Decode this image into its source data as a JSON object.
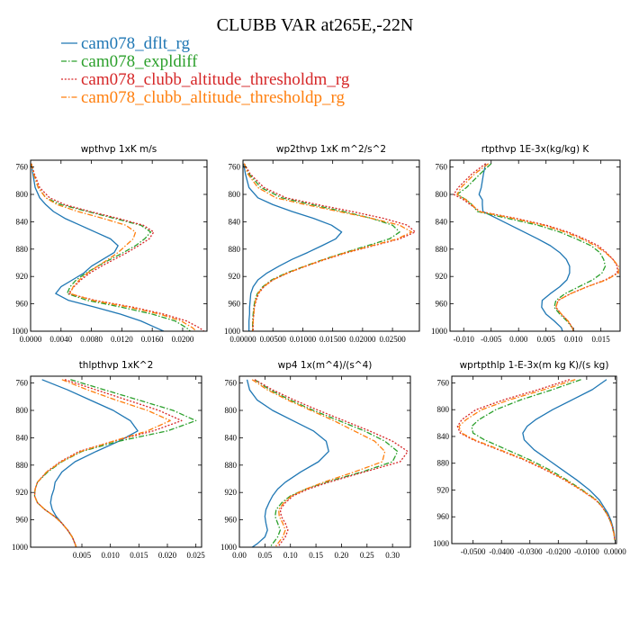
{
  "figure": {
    "title": "CLUBB VAR at265E,-22N",
    "legend": [
      {
        "label": "cam078_dflt_rg",
        "color": "#1f77b4",
        "dash": "solid"
      },
      {
        "label": "cam078_expldiff",
        "color": "#2ca02c",
        "dash": "dashdot"
      },
      {
        "label": "cam078_clubb_altitude_thresholdm_rg",
        "color": "#d62728",
        "dash": "dot"
      },
      {
        "label": "cam078_clubb_altitude_thresholdp_rg",
        "color": "#ff7f0e",
        "dash": "dashdot"
      }
    ]
  },
  "chart_data": [
    {
      "type": "line",
      "title": "wpthvp  1xK m/s",
      "xlim": [
        0.0,
        0.0232
      ],
      "ylim": [
        750,
        1000
      ],
      "y_inverted": true,
      "xticks": [
        0.0,
        0.004,
        0.008,
        0.012,
        0.016,
        0.02
      ],
      "xtick_labels": [
        "0.0000",
        "0.0040",
        "0.0080",
        "0.0120",
        "0.0160",
        "0.0200"
      ],
      "yticks": [
        760,
        800,
        840,
        880,
        920,
        960,
        1000
      ],
      "y": [
        755,
        770,
        790,
        805,
        815,
        825,
        835,
        845,
        855,
        865,
        875,
        885,
        895,
        905,
        915,
        925,
        935,
        945,
        955,
        965,
        975,
        985,
        995,
        1000
      ],
      "series": [
        {
          "name": "cam078_dflt_rg",
          "values": [
            0.0001,
            0.0003,
            0.0006,
            0.0012,
            0.002,
            0.003,
            0.0045,
            0.0065,
            0.0085,
            0.0105,
            0.0115,
            0.011,
            0.0095,
            0.008,
            0.007,
            0.0055,
            0.004,
            0.0033,
            0.005,
            0.0085,
            0.0118,
            0.0145,
            0.0165,
            0.0175
          ]
        },
        {
          "name": "cam078_expldiff",
          "values": [
            0.0001,
            0.0004,
            0.001,
            0.002,
            0.004,
            0.0075,
            0.011,
            0.0145,
            0.0158,
            0.015,
            0.0138,
            0.0122,
            0.0105,
            0.0088,
            0.0073,
            0.006,
            0.0052,
            0.0048,
            0.0075,
            0.012,
            0.016,
            0.019,
            0.0205,
            0.021
          ]
        },
        {
          "name": "cam078_clubb_altitude_thresholdm_rg",
          "values": [
            0.0001,
            0.0005,
            0.0012,
            0.0025,
            0.0045,
            0.0078,
            0.0115,
            0.0148,
            0.0162,
            0.0156,
            0.0142,
            0.0127,
            0.011,
            0.0093,
            0.0078,
            0.0066,
            0.0057,
            0.005,
            0.0085,
            0.0135,
            0.0175,
            0.0205,
            0.0222,
            0.0228
          ]
        },
        {
          "name": "cam078_clubb_altitude_thresholdp_rg",
          "values": [
            0.0001,
            0.0004,
            0.001,
            0.002,
            0.0035,
            0.0062,
            0.0095,
            0.0125,
            0.0138,
            0.0135,
            0.0125,
            0.0115,
            0.0102,
            0.0088,
            0.0075,
            0.0064,
            0.0056,
            0.0052,
            0.0082,
            0.013,
            0.017,
            0.0198,
            0.0213,
            0.0218
          ]
        }
      ]
    },
    {
      "type": "line",
      "title": "wp2thvp  1xK m^2/s^2",
      "xlim": [
        0.0,
        0.0295
      ],
      "ylim": [
        750,
        1000
      ],
      "y_inverted": true,
      "xticks": [
        0.0,
        0.005,
        0.01,
        0.015,
        0.02,
        0.025
      ],
      "xtick_labels": [
        "0.00000",
        "0.00500",
        "0.01000",
        "0.01500",
        "0.02000",
        "0.02500"
      ],
      "yticks": [
        760,
        800,
        840,
        880,
        920,
        960,
        1000
      ],
      "y": [
        755,
        770,
        790,
        805,
        815,
        825,
        835,
        845,
        855,
        865,
        875,
        885,
        895,
        905,
        915,
        925,
        935,
        945,
        955,
        965,
        975,
        985,
        995,
        1000
      ],
      "series": [
        {
          "name": "cam078_dflt_rg",
          "values": [
            0.0001,
            0.0004,
            0.001,
            0.0025,
            0.005,
            0.0082,
            0.0118,
            0.0148,
            0.0165,
            0.0155,
            0.0132,
            0.0108,
            0.0082,
            0.006,
            0.004,
            0.0025,
            0.0017,
            0.0013,
            0.0012,
            0.0011,
            0.0011,
            0.001,
            0.001,
            0.001
          ]
        },
        {
          "name": "cam078_expldiff",
          "values": [
            0.0002,
            0.001,
            0.003,
            0.0065,
            0.0115,
            0.0168,
            0.0215,
            0.025,
            0.0262,
            0.0245,
            0.0208,
            0.017,
            0.0135,
            0.0103,
            0.0072,
            0.0048,
            0.0033,
            0.0024,
            0.002,
            0.0018,
            0.0017,
            0.0016,
            0.0016,
            0.0016
          ]
        },
        {
          "name": "cam078_clubb_altitude_thresholdm_rg",
          "values": [
            0.0002,
            0.0012,
            0.0035,
            0.0072,
            0.0125,
            0.0182,
            0.0235,
            0.0275,
            0.0288,
            0.0262,
            0.0218,
            0.0175,
            0.0138,
            0.0105,
            0.0075,
            0.005,
            0.0035,
            0.0026,
            0.0022,
            0.0019,
            0.0018,
            0.0017,
            0.0017,
            0.0017
          ]
        },
        {
          "name": "cam078_clubb_altitude_thresholdp_rg",
          "values": [
            0.0002,
            0.0008,
            0.0025,
            0.0055,
            0.0105,
            0.016,
            0.0215,
            0.0262,
            0.0282,
            0.0258,
            0.0215,
            0.0172,
            0.0136,
            0.0104,
            0.0074,
            0.005,
            0.0034,
            0.0025,
            0.0021,
            0.0019,
            0.0018,
            0.0017,
            0.0016,
            0.0016
          ]
        }
      ]
    },
    {
      "type": "line",
      "title": "rtpthvp  1E-3x(kg/kg) K",
      "xlim": [
        -0.0125,
        0.0185
      ],
      "ylim": [
        750,
        1000
      ],
      "y_inverted": true,
      "xticks": [
        -0.01,
        -0.005,
        0.0,
        0.005,
        0.01,
        0.015
      ],
      "xtick_labels": [
        "-0.010",
        "-0.005",
        "0.000",
        "0.005",
        "0.010",
        "0.015"
      ],
      "yticks": [
        760,
        800,
        840,
        880,
        920,
        960,
        1000
      ],
      "y": [
        755,
        770,
        790,
        800,
        808,
        815,
        825,
        835,
        845,
        855,
        865,
        875,
        885,
        895,
        905,
        915,
        925,
        935,
        945,
        955,
        965,
        975,
        985,
        995,
        1000
      ],
      "series": [
        {
          "name": "cam078_dflt_rg",
          "values": [
            -0.006,
            -0.0064,
            -0.0068,
            -0.0072,
            -0.0066,
            -0.0066,
            -0.0065,
            -0.004,
            -0.0015,
            0.001,
            0.0035,
            0.0058,
            0.0075,
            0.0087,
            0.0093,
            0.0093,
            0.0088,
            0.0075,
            0.0058,
            0.0043,
            0.0042,
            0.005,
            0.0065,
            0.0078,
            0.008
          ]
        },
        {
          "name": "cam078_expldiff",
          "values": [
            -0.005,
            -0.007,
            -0.0095,
            -0.0112,
            -0.0095,
            -0.0085,
            -0.0075,
            -0.002,
            0.0035,
            0.0075,
            0.0105,
            0.0132,
            0.0148,
            0.0155,
            0.0158,
            0.0152,
            0.0135,
            0.011,
            0.0085,
            0.0068,
            0.0065,
            0.0075,
            0.0088,
            0.0098,
            0.01
          ]
        },
        {
          "name": "cam078_clubb_altitude_thresholdm_rg",
          "values": [
            -0.006,
            -0.0085,
            -0.011,
            -0.0118,
            -0.01,
            -0.0088,
            -0.007,
            -0.0005,
            0.005,
            0.009,
            0.012,
            0.0145,
            0.016,
            0.0172,
            0.018,
            0.018,
            0.0158,
            0.0125,
            0.0095,
            0.0072,
            0.0068,
            0.0078,
            0.009,
            0.0098,
            0.01
          ]
        },
        {
          "name": "cam078_clubb_altitude_thresholdp_rg",
          "values": [
            -0.0055,
            -0.008,
            -0.0105,
            -0.0112,
            -0.0096,
            -0.0085,
            -0.0072,
            -0.001,
            0.0045,
            0.0085,
            0.0115,
            0.014,
            0.0158,
            0.0172,
            0.0182,
            0.0182,
            0.016,
            0.0125,
            0.0095,
            0.0072,
            0.0068,
            0.0078,
            0.009,
            0.0098,
            0.01
          ]
        }
      ]
    },
    {
      "type": "line",
      "title": "thlpthvp  1xK^2",
      "xlim": [
        -0.004,
        0.026
      ],
      "ylim": [
        750,
        1000
      ],
      "y_inverted": true,
      "xticks": [
        0.005,
        0.01,
        0.015,
        0.02,
        0.025
      ],
      "xtick_labels": [
        "0.005",
        "0.010",
        "0.015",
        "0.020",
        "0.025"
      ],
      "yticks": [
        760,
        800,
        840,
        880,
        920,
        960,
        1000
      ],
      "y": [
        755,
        770,
        785,
        800,
        815,
        830,
        845,
        860,
        875,
        890,
        905,
        915,
        925,
        935,
        945,
        955,
        965,
        975,
        985,
        995,
        1000
      ],
      "series": [
        {
          "name": "cam078_dflt_rg",
          "values": [
            -0.002,
            0.0025,
            0.0065,
            0.0105,
            0.0135,
            0.0148,
            0.0115,
            0.0075,
            0.0038,
            0.0015,
            0.0003,
            0.0001,
            -0.0003,
            -0.0005,
            -0.0002,
            0.0005,
            0.0015,
            0.0025,
            0.0033,
            0.0038,
            0.004
          ]
        },
        {
          "name": "cam078_expldiff",
          "values": [
            0.003,
            0.009,
            0.015,
            0.021,
            0.025,
            0.02,
            0.0115,
            0.005,
            0.0015,
            -0.001,
            -0.0028,
            -0.0032,
            -0.0033,
            -0.0028,
            -0.0015,
            0.0002,
            0.0015,
            0.0025,
            0.0033,
            0.0038,
            0.004
          ]
        },
        {
          "name": "cam078_clubb_altitude_thresholdm_rg",
          "values": [
            0.002,
            0.0075,
            0.013,
            0.0185,
            0.0225,
            0.0175,
            0.0105,
            0.0045,
            0.0012,
            -0.0012,
            -0.0028,
            -0.0032,
            -0.0033,
            -0.0028,
            -0.0015,
            0.0002,
            0.0015,
            0.0025,
            0.0033,
            0.0038,
            0.004
          ]
        },
        {
          "name": "cam078_clubb_altitude_thresholdp_rg",
          "values": [
            0.0015,
            0.006,
            0.011,
            0.0165,
            0.0205,
            0.0165,
            0.0105,
            0.0048,
            0.0014,
            -0.0012,
            -0.0028,
            -0.0032,
            -0.0033,
            -0.0028,
            -0.0015,
            0.0002,
            0.0015,
            0.0025,
            0.0033,
            0.0038,
            0.004
          ]
        }
      ]
    },
    {
      "type": "line",
      "title": "wp4  1x(m^4)/(s^4)",
      "xlim": [
        0.0,
        0.335
      ],
      "ylim": [
        750,
        1000
      ],
      "y_inverted": true,
      "xticks": [
        0.0,
        0.05,
        0.1,
        0.15,
        0.2,
        0.25,
        0.3
      ],
      "xtick_labels": [
        "0.00",
        "0.05",
        "0.10",
        "0.15",
        "0.20",
        "0.25",
        "0.30"
      ],
      "yticks": [
        760,
        800,
        840,
        880,
        920,
        960,
        1000
      ],
      "y": [
        755,
        770,
        785,
        800,
        815,
        830,
        845,
        860,
        875,
        890,
        905,
        915,
        925,
        935,
        945,
        955,
        965,
        975,
        985,
        995,
        1000
      ],
      "series": [
        {
          "name": "cam078_dflt_rg",
          "values": [
            0.015,
            0.02,
            0.035,
            0.065,
            0.105,
            0.145,
            0.17,
            0.175,
            0.155,
            0.12,
            0.09,
            0.075,
            0.065,
            0.058,
            0.052,
            0.05,
            0.052,
            0.055,
            0.05,
            0.035,
            0.025
          ]
        },
        {
          "name": "cam078_expldiff",
          "values": [
            0.03,
            0.06,
            0.1,
            0.145,
            0.195,
            0.245,
            0.285,
            0.31,
            0.3,
            0.24,
            0.17,
            0.13,
            0.1,
            0.083,
            0.072,
            0.07,
            0.075,
            0.08,
            0.075,
            0.065,
            0.06
          ]
        },
        {
          "name": "cam078_clubb_altitude_thresholdm_rg",
          "values": [
            0.03,
            0.065,
            0.108,
            0.155,
            0.205,
            0.255,
            0.3,
            0.33,
            0.315,
            0.245,
            0.175,
            0.135,
            0.105,
            0.09,
            0.08,
            0.082,
            0.09,
            0.095,
            0.09,
            0.08,
            0.075
          ]
        },
        {
          "name": "cam078_clubb_altitude_thresholdp_rg",
          "values": [
            0.025,
            0.055,
            0.095,
            0.14,
            0.185,
            0.225,
            0.265,
            0.285,
            0.28,
            0.225,
            0.165,
            0.13,
            0.102,
            0.087,
            0.077,
            0.078,
            0.085,
            0.09,
            0.085,
            0.075,
            0.07
          ]
        }
      ]
    },
    {
      "type": "line",
      "title": "wprtpthlp  1-E-3x(m kg K)/(s kg)",
      "xlim": [
        -0.0575,
        0.0005
      ],
      "ylim": [
        750,
        1000
      ],
      "y_inverted": true,
      "xticks": [
        -0.05,
        -0.04,
        -0.03,
        -0.02,
        -0.01,
        0.0
      ],
      "xtick_labels": [
        "-0.0500",
        "-0.0400",
        "-0.0300",
        "-0.0200",
        "-0.0100",
        "0.0000"
      ],
      "yticks": [
        760,
        800,
        840,
        880,
        920,
        960,
        1000
      ],
      "y": [
        755,
        770,
        785,
        800,
        815,
        825,
        835,
        845,
        860,
        875,
        890,
        905,
        920,
        935,
        945,
        955,
        965,
        975,
        985,
        995
      ],
      "series": [
        {
          "name": "cam078_dflt_rg",
          "values": [
            -0.003,
            -0.008,
            -0.015,
            -0.022,
            -0.028,
            -0.031,
            -0.0325,
            -0.032,
            -0.0285,
            -0.0235,
            -0.0185,
            -0.0135,
            -0.009,
            -0.0055,
            -0.004,
            -0.0025,
            -0.0015,
            -0.0008,
            -0.0003,
            -0.0001
          ]
        },
        {
          "name": "cam078_expldiff",
          "values": [
            -0.012,
            -0.022,
            -0.033,
            -0.042,
            -0.048,
            -0.0505,
            -0.05,
            -0.046,
            -0.038,
            -0.03,
            -0.023,
            -0.017,
            -0.0115,
            -0.0065,
            -0.0045,
            -0.003,
            -0.0018,
            -0.001,
            -0.0004,
            -0.0001
          ]
        },
        {
          "name": "cam078_clubb_altitude_thresholdm_rg",
          "values": [
            -0.016,
            -0.027,
            -0.039,
            -0.049,
            -0.054,
            -0.0555,
            -0.0545,
            -0.05,
            -0.041,
            -0.032,
            -0.0245,
            -0.0178,
            -0.012,
            -0.0068,
            -0.0046,
            -0.003,
            -0.0018,
            -0.001,
            -0.0004,
            -0.0001
          ]
        },
        {
          "name": "cam078_clubb_altitude_thresholdp_rg",
          "values": [
            -0.014,
            -0.025,
            -0.037,
            -0.047,
            -0.0525,
            -0.055,
            -0.054,
            -0.0495,
            -0.0405,
            -0.0315,
            -0.024,
            -0.0175,
            -0.0118,
            -0.0067,
            -0.0045,
            -0.003,
            -0.0018,
            -0.001,
            -0.0004,
            -0.0001
          ]
        }
      ]
    }
  ]
}
